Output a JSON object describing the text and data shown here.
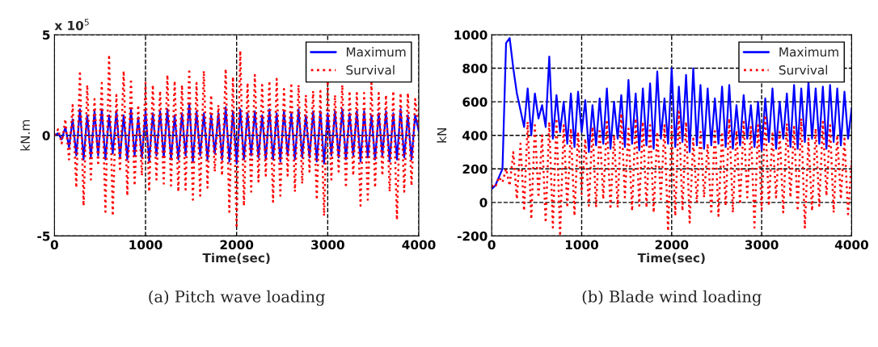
{
  "chart_data": [
    {
      "type": "line",
      "title": "(a) Pitch wave loading",
      "xlabel": "Time(sec)",
      "ylabel": "kN.m",
      "annotations": [
        "x 10$^{5}$"
      ],
      "x": [
        0,
        40,
        80,
        120,
        160,
        200,
        240,
        280,
        320,
        360,
        400,
        440,
        480,
        520,
        560,
        600,
        640,
        680,
        720,
        760,
        800,
        840,
        880,
        920,
        960,
        1000,
        1040,
        1080,
        1120,
        1160,
        1200,
        1240,
        1280,
        1320,
        1360,
        1400,
        1440,
        1480,
        1520,
        1560,
        1600,
        1640,
        1680,
        1720,
        1760,
        1800,
        1840,
        1880,
        1920,
        1960,
        2000,
        2040,
        2080,
        2120,
        2160,
        2200,
        2240,
        2280,
        2320,
        2360,
        2400,
        2440,
        2480,
        2520,
        2560,
        2600,
        2640,
        2680,
        2720,
        2760,
        2800,
        2840,
        2880,
        2920,
        2960,
        3000,
        3040,
        3080,
        3120,
        3160,
        3200,
        3240,
        3280,
        3320,
        3360,
        3400,
        3440,
        3480,
        3520,
        3560,
        3600,
        3640,
        3680,
        3720,
        3760,
        3800,
        3840,
        3880,
        3920,
        3960,
        4000
      ],
      "xlim": [
        0,
        4000
      ],
      "xticks": [
        0,
        1000,
        2000,
        3000,
        4000
      ],
      "ylim": [
        -5,
        5
      ],
      "yticks": [
        -5,
        0,
        5
      ],
      "grid": true,
      "legend": "top right",
      "series": [
        {
          "name": "Maximum",
          "color": "#0000ff",
          "line_style": "solid",
          "values": [
            0,
            0.1,
            -0.2,
            0.4,
            -0.6,
            0.8,
            -1.0,
            1.3,
            -1.2,
            1.0,
            -1.1,
            1.2,
            -1.0,
            1.3,
            -1.2,
            1.0,
            -0.9,
            1.2,
            -1.1,
            1.0,
            -1.2,
            1.3,
            -1.0,
            0.9,
            -1.1,
            1.2,
            -1.3,
            1.1,
            -1.0,
            1.2,
            -1.1,
            1.3,
            -1.2,
            1.0,
            -1.2,
            1.1,
            -1.0,
            1.6,
            -1.3,
            1.2,
            -1.0,
            1.1,
            -1.2,
            1.0,
            -0.9,
            1.1,
            -1.2,
            1.4,
            -1.3,
            1.2,
            -1.4,
            1.3,
            -1.2,
            1.1,
            -1.0,
            1.2,
            -1.1,
            1.0,
            -1.2,
            1.3,
            -1.2,
            1.1,
            -1.3,
            1.2,
            -1.0,
            1.1,
            -1.2,
            1.3,
            -1.1,
            1.0,
            -1.1,
            1.2,
            -1.3,
            1.2,
            -1.4,
            1.1,
            -1.0,
            1.2,
            -1.1,
            1.3,
            -1.2,
            1.1,
            -1.0,
            1.2,
            -1.3,
            1.2,
            -1.1,
            1.0,
            -1.2,
            1.1,
            -1.0,
            1.2,
            -1.3,
            1.1,
            -1.2,
            1.3,
            -1.1,
            1.0,
            -1.2,
            1.0,
            0.2
          ]
        },
        {
          "name": "Survival",
          "color": "#ff0000",
          "line_style": "dotted",
          "values": [
            0,
            0.3,
            -0.4,
            0.8,
            -1.2,
            1.5,
            -2.6,
            3.2,
            -3.5,
            2.5,
            -2.2,
            1.8,
            -1.5,
            2.6,
            -3.8,
            4.0,
            -4.0,
            2.0,
            -1.8,
            3.2,
            -3.0,
            2.8,
            -2.5,
            1.5,
            -2.0,
            2.6,
            -2.8,
            2.5,
            -2.2,
            2.2,
            -2.4,
            3.0,
            -2.5,
            2.7,
            -2.8,
            2.5,
            -2.7,
            3.3,
            -3.2,
            2.6,
            -3.0,
            3.2,
            -2.6,
            2.0,
            -1.8,
            1.5,
            -2.0,
            3.3,
            -3.8,
            2.9,
            -4.6,
            4.2,
            -3.5,
            2.6,
            -2.8,
            3.0,
            -2.3,
            2.5,
            -2.0,
            2.7,
            -3.3,
            2.8,
            -3.0,
            2.3,
            -2.0,
            2.6,
            -2.8,
            2.5,
            -2.4,
            2.0,
            -1.8,
            2.2,
            -3.2,
            2.2,
            -4.0,
            2.7,
            -2.2,
            2.0,
            -1.8,
            2.5,
            -2.6,
            2.2,
            -2.0,
            2.1,
            -3.5,
            2.1,
            -3.2,
            2.6,
            -2.6,
            2.1,
            -2.0,
            2.0,
            -2.8,
            2.2,
            -4.2,
            2.1,
            -2.8,
            2.1,
            -2.5,
            1.8,
            0.3
          ]
        }
      ]
    },
    {
      "type": "line",
      "title": "(b) Blade wind loading",
      "xlabel": "Time(sec)",
      "ylabel": "kN",
      "x": [
        0,
        40,
        80,
        120,
        160,
        200,
        240,
        280,
        320,
        360,
        400,
        440,
        480,
        520,
        560,
        600,
        640,
        680,
        720,
        760,
        800,
        840,
        880,
        920,
        960,
        1000,
        1040,
        1080,
        1120,
        1160,
        1200,
        1240,
        1280,
        1320,
        1360,
        1400,
        1440,
        1480,
        1520,
        1560,
        1600,
        1640,
        1680,
        1720,
        1760,
        1800,
        1840,
        1880,
        1920,
        1960,
        2000,
        2040,
        2080,
        2120,
        2160,
        2200,
        2240,
        2280,
        2320,
        2360,
        2400,
        2440,
        2480,
        2520,
        2560,
        2600,
        2640,
        2680,
        2720,
        2760,
        2800,
        2840,
        2880,
        2920,
        2960,
        3000,
        3040,
        3080,
        3120,
        3160,
        3200,
        3240,
        3280,
        3320,
        3360,
        3400,
        3440,
        3480,
        3520,
        3560,
        3600,
        3640,
        3680,
        3720,
        3760,
        3800,
        3840,
        3880,
        3920,
        3960,
        4000
      ],
      "xlim": [
        0,
        4000
      ],
      "xticks": [
        0,
        1000,
        2000,
        3000,
        4000
      ],
      "ylim": [
        -200,
        1000
      ],
      "yticks": [
        -200,
        0,
        200,
        400,
        600,
        800,
        1000
      ],
      "grid": true,
      "legend": "top right",
      "series": [
        {
          "name": "Maximum",
          "color": "#0000ff",
          "line_style": "solid",
          "values": [
            80,
            100,
            150,
            200,
            950,
            980,
            800,
            650,
            550,
            450,
            680,
            400,
            650,
            500,
            580,
            450,
            870,
            380,
            640,
            420,
            600,
            350,
            650,
            330,
            660,
            420,
            610,
            300,
            580,
            340,
            620,
            350,
            680,
            320,
            600,
            380,
            640,
            330,
            730,
            350,
            650,
            310,
            680,
            340,
            710,
            320,
            780,
            380,
            620,
            350,
            800,
            330,
            690,
            360,
            760,
            300,
            800,
            340,
            700,
            320,
            680,
            340,
            620,
            350,
            690,
            330,
            700,
            320,
            580,
            340,
            640,
            380,
            580,
            330,
            600,
            310,
            620,
            360,
            680,
            320,
            600,
            380,
            650,
            330,
            700,
            320,
            680,
            360,
            720,
            380,
            680,
            350,
            690,
            320,
            700,
            360,
            680,
            340,
            660,
            380,
            560
          ]
        },
        {
          "name": "Survival",
          "color": "#ff0000",
          "line_style": "dotted",
          "values": [
            100,
            90,
            150,
            120,
            200,
            100,
            300,
            20,
            350,
            -50,
            480,
            -100,
            460,
            30,
            400,
            -120,
            480,
            -150,
            500,
            -200,
            460,
            -30,
            440,
            -80,
            420,
            50,
            380,
            -20,
            450,
            -30,
            440,
            20,
            480,
            -40,
            400,
            -30,
            530,
            30,
            440,
            -50,
            500,
            -20,
            480,
            -30,
            460,
            -60,
            420,
            20,
            460,
            -170,
            450,
            -80,
            540,
            -50,
            480,
            -120,
            380,
            0,
            420,
            30,
            350,
            -70,
            440,
            -80,
            420,
            -20,
            500,
            -60,
            430,
            -10,
            480,
            30,
            450,
            -150,
            460,
            -40,
            520,
            -20,
            410,
            30,
            420,
            -60,
            470,
            30,
            450,
            -50,
            500,
            -150,
            380,
            -50,
            440,
            -20,
            480,
            40,
            460,
            -60,
            400,
            20,
            380,
            -70,
            250
          ]
        }
      ]
    }
  ]
}
